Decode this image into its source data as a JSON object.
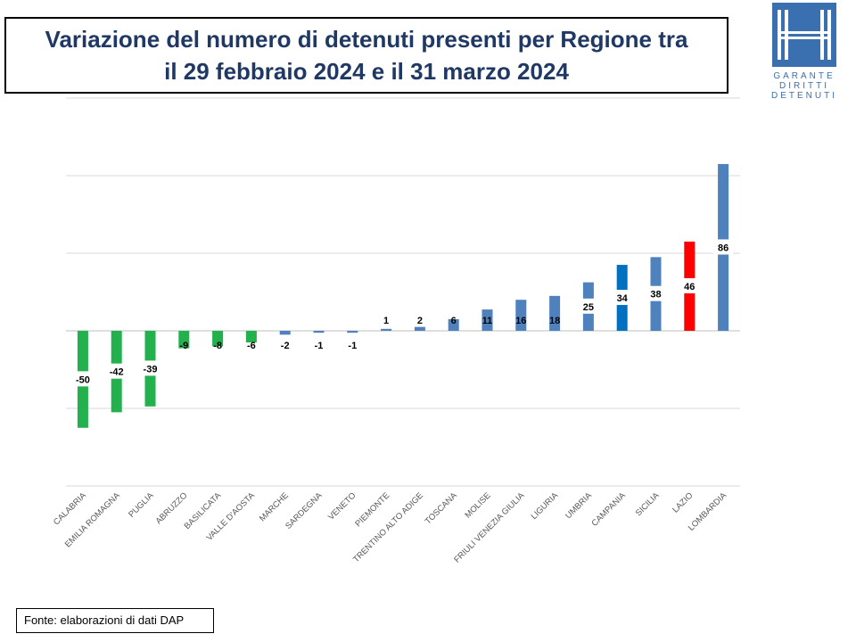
{
  "header": {
    "title_line1": "Variazione del numero di detenuti presenti per Regione tra",
    "title_line2": "il 29 febbraio 2024 e il 31 marzo 2024"
  },
  "logo": {
    "line1": "GARANTE",
    "line2": "DIRITTI",
    "line3": "DETENUTI",
    "icon": "garante-logo-icon",
    "color": "#3a6fb0"
  },
  "footer": {
    "source": "Fonte: elaborazioni di dati DAP"
  },
  "chart_data": {
    "type": "bar",
    "title": "",
    "xlabel": "",
    "ylabel": "",
    "ylim": [
      -80,
      120
    ],
    "grid": true,
    "categories": [
      "CALABRIA",
      "EMILIA ROMAGNA",
      "PUGLIA",
      "ABRUZZO",
      "BASILICATA",
      "VALLE D'AOSTA",
      "MARCHE",
      "SARDEGNA",
      "VENETO",
      "PIEMONTE",
      "TRENTINO ALTO ADIGE",
      "TOSCANA",
      "MOLISE",
      "FRIULI VENEZIA GIULIA",
      "LIGURIA",
      "UMBRIA",
      "CAMPANIA",
      "SICILIA",
      "LAZIO",
      "LOMBARDIA"
    ],
    "values": [
      -50,
      -42,
      -39,
      -9,
      -8,
      -6,
      -2,
      -1,
      -1,
      1,
      2,
      6,
      11,
      16,
      18,
      25,
      34,
      38,
      46,
      86
    ],
    "data_labels": [
      "-50",
      "-42",
      "-39",
      "-9",
      "-8",
      "-6",
      "-2",
      "-1",
      "-1",
      "1",
      "2",
      "6",
      "11",
      "16",
      "18",
      "25",
      "34",
      "38",
      "46",
      "86"
    ],
    "colors": [
      "#22b14c",
      "#22b14c",
      "#22b14c",
      "#22b14c",
      "#22b14c",
      "#22b14c",
      "#4f81bd",
      "#4f81bd",
      "#4f81bd",
      "#4f81bd",
      "#4f81bd",
      "#4f81bd",
      "#4f81bd",
      "#4f81bd",
      "#4f81bd",
      "#4f81bd",
      "#0070c0",
      "#4f81bd",
      "#ff0000",
      "#4f81bd"
    ]
  }
}
